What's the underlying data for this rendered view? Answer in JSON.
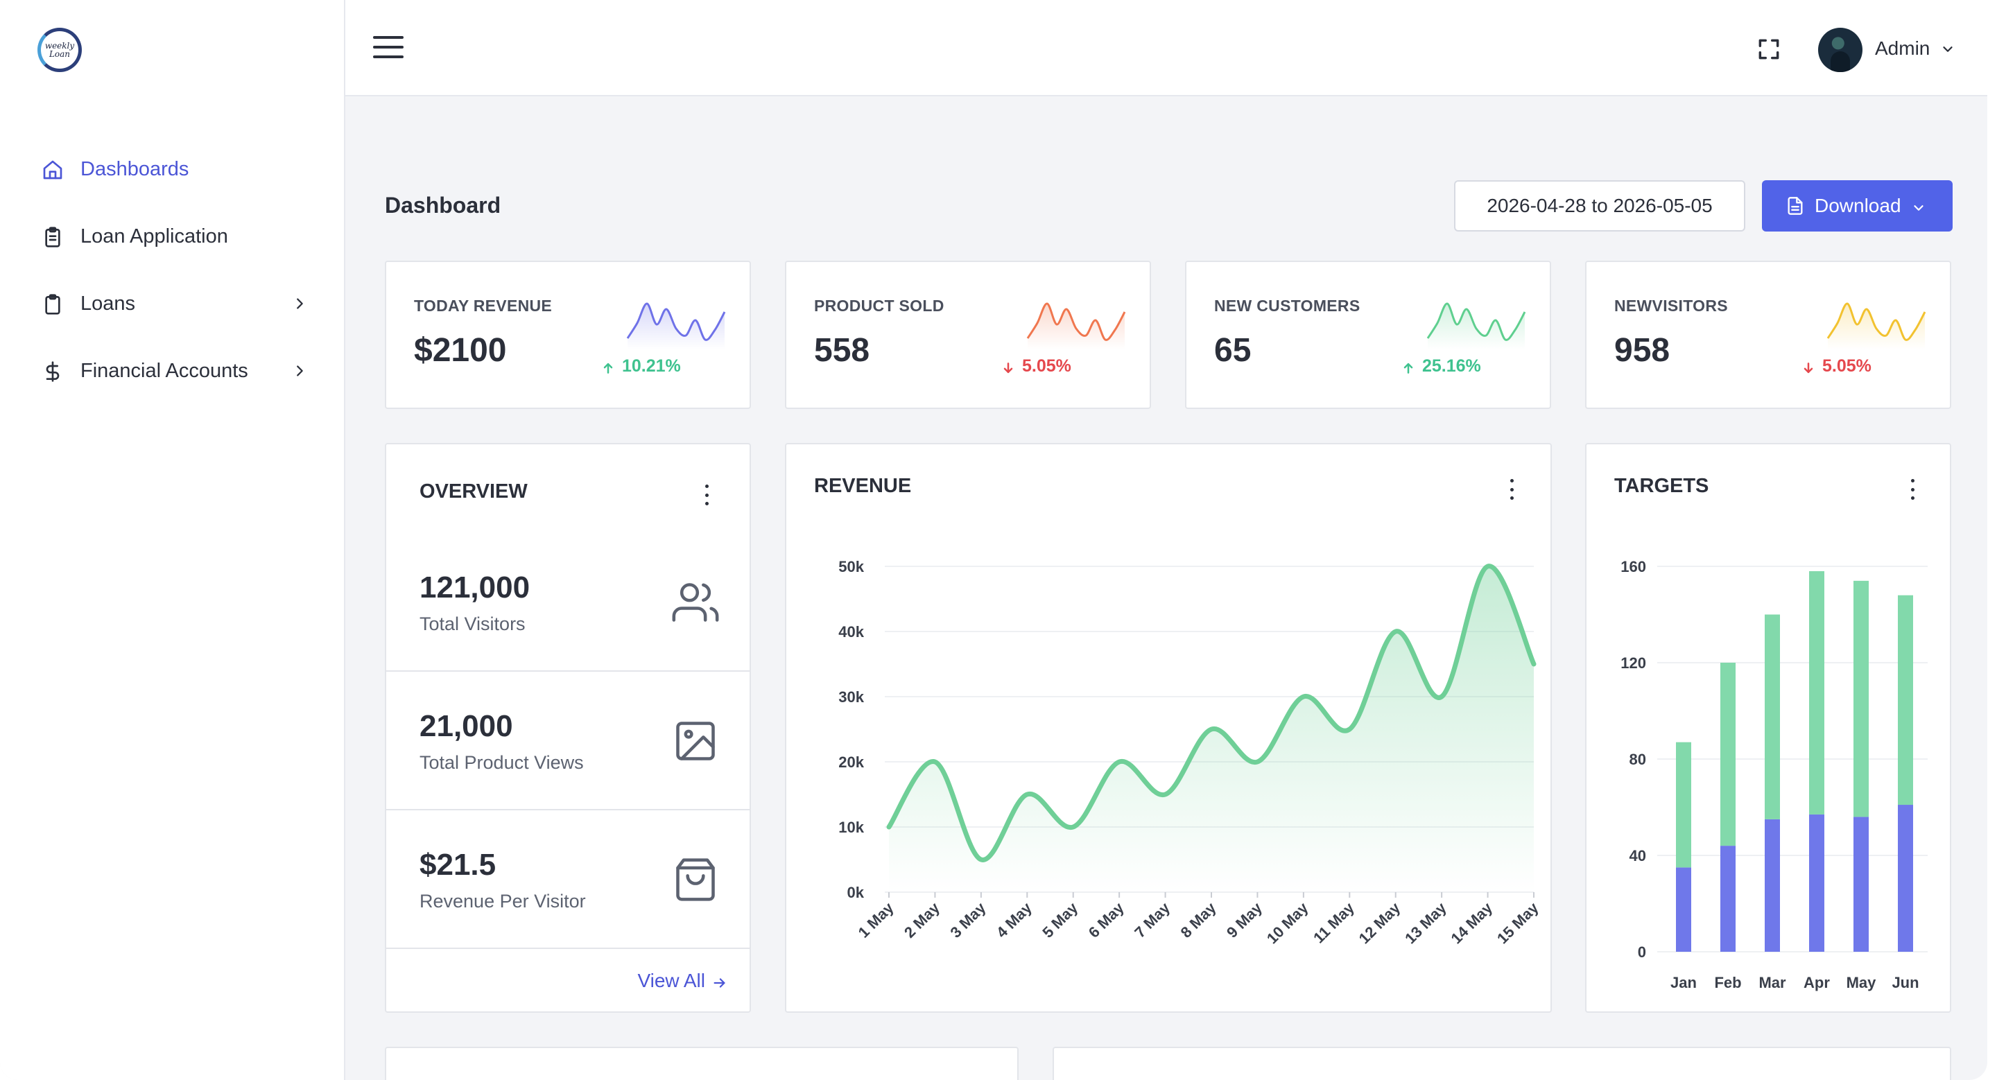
{
  "sidebar": {
    "logo_text": "weekly Loan",
    "items": [
      {
        "label": "Dashboards",
        "icon": "home-icon",
        "active": true
      },
      {
        "label": "Loan Application",
        "icon": "clipboard-list-icon"
      },
      {
        "label": "Loans",
        "icon": "clipboard-icon",
        "has_children": true
      },
      {
        "label": "Financial Accounts",
        "icon": "dollar-icon",
        "has_children": true
      }
    ]
  },
  "header": {
    "menu_icon": "hamburger-icon",
    "fullscreen_icon": "fullscreen-icon",
    "user_name": "Admin"
  },
  "page": {
    "title": "Dashboard",
    "date_range": "2026-04-28 to 2026-05-05",
    "download_label": "Download"
  },
  "colors": {
    "accent": "#5163e8",
    "up": "#3fc28f",
    "down": "#e5484d",
    "revenue_line": "#6fcf97",
    "bar_bottom": "#6f78ea",
    "bar_top": "#82d9ab"
  },
  "stats": [
    {
      "label": "TODAY REVENUE",
      "value": "$2100",
      "change": "10.21%",
      "direction": "up",
      "spark_color": "#6f72e8"
    },
    {
      "label": "PRODUCT SOLD",
      "value": "558",
      "change": "5.05%",
      "direction": "down",
      "spark_color": "#f0774f"
    },
    {
      "label": "NEW CUSTOMERS",
      "value": "65",
      "change": "25.16%",
      "direction": "up",
      "spark_color": "#5fcf8f"
    },
    {
      "label": "NEWVISITORS",
      "value": "958",
      "change": "5.05%",
      "direction": "down",
      "spark_color": "#f2c230"
    }
  ],
  "overview": {
    "title": "OVERVIEW",
    "rows": [
      {
        "value": "121,000",
        "label": "Total Visitors",
        "icon": "users-icon"
      },
      {
        "value": "21,000",
        "label": "Total Product Views",
        "icon": "image-icon"
      },
      {
        "value": "$21.5",
        "label": "Revenue Per Visitor",
        "icon": "shopping-bag-icon"
      }
    ],
    "view_all": "View All"
  },
  "revenue": {
    "title": "REVENUE"
  },
  "targets": {
    "title": "TARGETS"
  },
  "chart_data": [
    {
      "type": "area",
      "title": "REVENUE",
      "categories": [
        "1 May",
        "2 May",
        "3 May",
        "4 May",
        "5 May",
        "6 May",
        "7 May",
        "8 May",
        "9 May",
        "10 May",
        "11 May",
        "12 May",
        "13 May",
        "14 May",
        "15 May"
      ],
      "series": [
        {
          "values": [
            10000,
            20000,
            5000,
            15000,
            10000,
            20000,
            15000,
            25000,
            20000,
            30000,
            25000,
            40000,
            30000,
            50000,
            35000
          ]
        }
      ],
      "y_ticks": [
        "0k",
        "10k",
        "20k",
        "30k",
        "40k",
        "50k"
      ],
      "ylim": [
        0,
        50000
      ],
      "grid": true
    },
    {
      "type": "bar",
      "stacked": true,
      "title": "TARGETS",
      "categories": [
        "Jan",
        "Feb",
        "Mar",
        "Apr",
        "May",
        "Jun"
      ],
      "series": [
        {
          "values": [
            35,
            44,
            55,
            57,
            56,
            61
          ]
        },
        {
          "values": [
            52,
            76,
            85,
            101,
            98,
            87
          ]
        }
      ],
      "y_ticks": [
        "0",
        "40",
        "80",
        "120",
        "160"
      ],
      "ylim": [
        0,
        160
      ],
      "grid": true
    }
  ]
}
